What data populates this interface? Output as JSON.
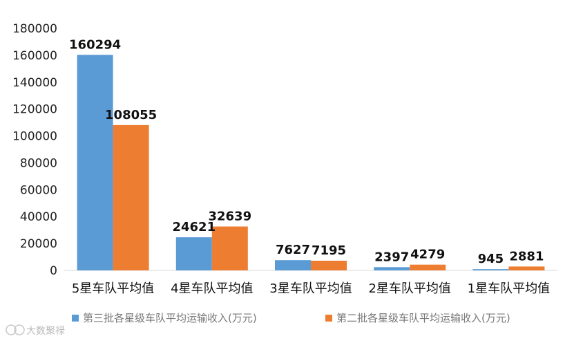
{
  "chart_data": {
    "type": "bar",
    "categories": [
      "5星车队平均值",
      "4星车队平均值",
      "3星车队平均值",
      "2星车队平均值",
      "1星车队平均值"
    ],
    "series": [
      {
        "name": "第三批各星级车队平均运输收入(万元)",
        "values": [
          160294,
          24621,
          7627,
          2397,
          945
        ],
        "color": "#5b9bd5"
      },
      {
        "name": "第二批各星级车队平均运输收入(万元)",
        "values": [
          108055,
          32639,
          7195,
          4279,
          2881
        ],
        "color": "#ed7d31"
      }
    ],
    "ylim": [
      0,
      180000
    ],
    "yticks": [
      0,
      20000,
      40000,
      60000,
      80000,
      100000,
      120000,
      140000,
      160000,
      180000
    ],
    "grid": false,
    "legend": "bottom",
    "data_labels": [
      "160294",
      "108055",
      "24621",
      "32639",
      "7627",
      "7195",
      "2397",
      "4279",
      "945",
      "2881"
    ]
  },
  "watermark": {
    "text": "大数聚禄",
    "icon": "brand-logo-icon"
  }
}
